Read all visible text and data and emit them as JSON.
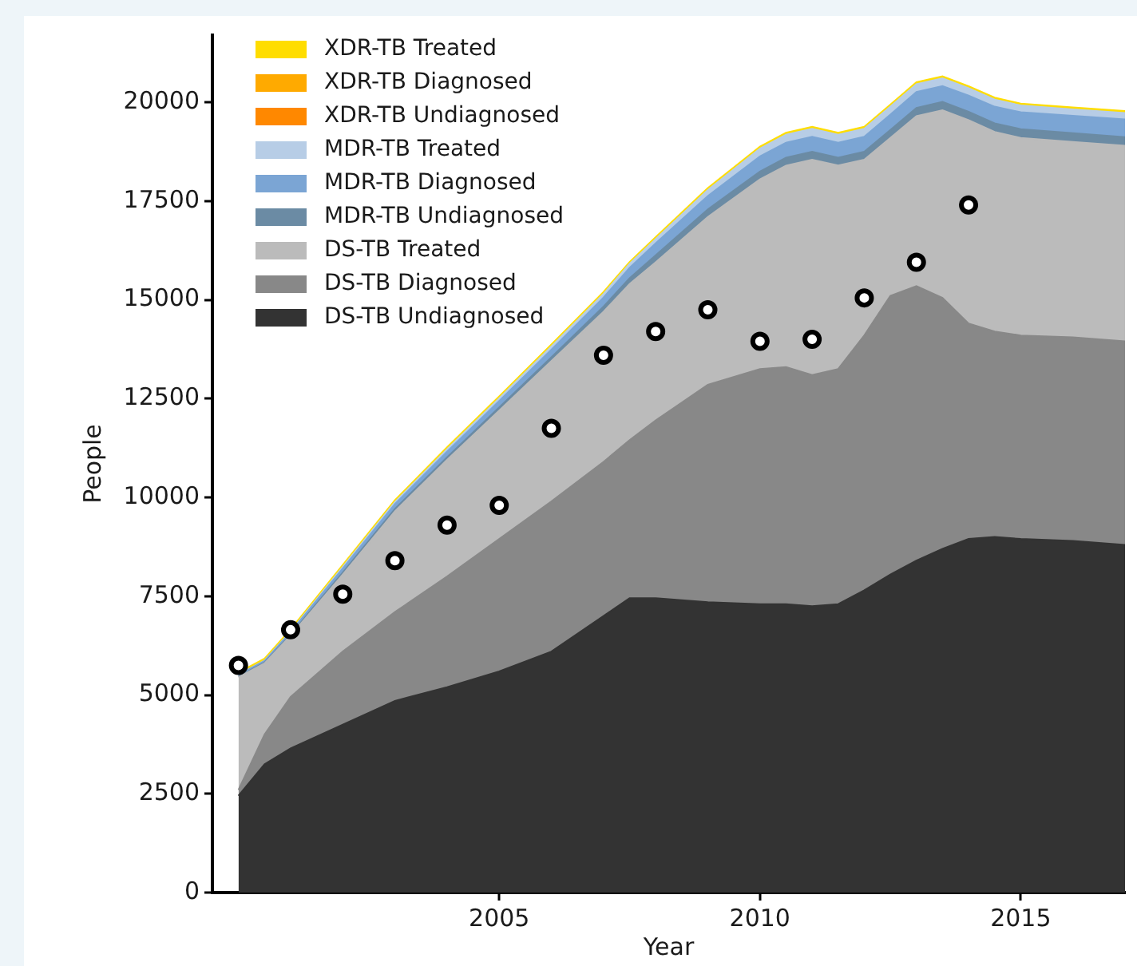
{
  "chart_data": {
    "type": "area",
    "stacked": true,
    "xlabel": "Year",
    "ylabel": "People",
    "legend": "top left",
    "grid": false,
    "xlim": [
      1999.5,
      2017
    ],
    "xticks": [
      2005,
      2010,
      2015
    ],
    "ylim": [
      0,
      21700
    ],
    "yticks": [
      0,
      2500,
      5000,
      7500,
      10000,
      12500,
      15000,
      17500,
      20000
    ],
    "x": [
      2000,
      2000.5,
      2001,
      2002,
      2003,
      2004,
      2005,
      2006,
      2007,
      2007.5,
      2008,
      2009,
      2010,
      2010.5,
      2011,
      2011.5,
      2012,
      2012.5,
      2013,
      2013.5,
      2014,
      2014.5,
      2015,
      2016,
      2017
    ],
    "series": [
      {
        "name": "DS-TB Undiagnosed",
        "color": "#333333",
        "values": [
          2450,
          3250,
          3650,
          4250,
          4850,
          5200,
          5600,
          6100,
          7000,
          7450,
          7450,
          7350,
          7300,
          7300,
          7250,
          7300,
          7650,
          8050,
          8400,
          8700,
          8950,
          9000,
          8950,
          8900,
          8800
        ]
      },
      {
        "name": "DS-TB Diagnosed",
        "color": "#888888",
        "values": [
          150,
          750,
          1300,
          1850,
          2250,
          2800,
          3350,
          3800,
          3900,
          4000,
          4500,
          5500,
          5950,
          6000,
          5850,
          5950,
          6450,
          7050,
          6950,
          6350,
          5450,
          5200,
          5150,
          5150,
          5150
        ]
      },
      {
        "name": "DS-TB Treated",
        "color": "#bbbbbb",
        "values": [
          2850,
          1800,
          1550,
          1950,
          2550,
          2950,
          3250,
          3550,
          3800,
          3950,
          4000,
          4250,
          4800,
          5100,
          5450,
          5150,
          4450,
          4000,
          4300,
          4750,
          5150,
          5050,
          5000,
          4950,
          4950
        ]
      },
      {
        "name": "MDR-TB Undiagnosed",
        "color": "#6b8ba4",
        "values": [
          20,
          20,
          30,
          50,
          60,
          70,
          80,
          100,
          130,
          150,
          180,
          190,
          200,
          200,
          200,
          200,
          200,
          200,
          210,
          210,
          210,
          220,
          220,
          220,
          220
        ]
      },
      {
        "name": "MDR-TB Diagnosed",
        "color": "#7ba5d4",
        "values": [
          40,
          40,
          60,
          100,
          120,
          140,
          160,
          190,
          230,
          260,
          300,
          340,
          380,
          380,
          380,
          380,
          380,
          390,
          400,
          400,
          410,
          420,
          430,
          440,
          450
        ]
      },
      {
        "name": "MDR-TB Treated",
        "color": "#b7cde6",
        "values": [
          10,
          10,
          20,
          40,
          50,
          60,
          70,
          80,
          90,
          100,
          110,
          150,
          200,
          200,
          200,
          200,
          200,
          200,
          200,
          200,
          190,
          180,
          170,
          160,
          160
        ]
      },
      {
        "name": "XDR-TB Undiagnosed",
        "color": "#ff8800",
        "values": [
          null,
          null,
          null,
          null,
          null,
          null,
          null,
          null,
          null,
          null,
          null,
          null,
          null,
          null,
          null,
          null,
          null,
          null,
          null,
          null,
          null,
          null,
          null,
          null,
          null
        ]
      },
      {
        "name": "XDR-TB Diagnosed",
        "color": "#ffaa00",
        "values": [
          null,
          null,
          null,
          null,
          null,
          null,
          null,
          null,
          null,
          null,
          null,
          null,
          null,
          null,
          null,
          null,
          null,
          null,
          null,
          null,
          null,
          null,
          null,
          null,
          null
        ]
      },
      {
        "name": "XDR-TB Treated",
        "color": "#ffdd00",
        "values": [
          50,
          50,
          50,
          50,
          50,
          50,
          50,
          50,
          50,
          50,
          50,
          50,
          50,
          50,
          50,
          50,
          50,
          50,
          50,
          50,
          50,
          50,
          50,
          50,
          50
        ]
      },
      {
        "type": "scatter",
        "marker": "circle",
        "color": "#000000",
        "x": [
          2000,
          2001,
          2002,
          2003,
          2004,
          2005,
          2006,
          2007,
          2008,
          2009,
          2010,
          2011,
          2012,
          2013,
          2014
        ],
        "values": [
          5750,
          6650,
          7550,
          8400,
          9300,
          9800,
          11750,
          13600,
          14200,
          14750,
          13950,
          14000,
          15050,
          15950,
          17400
        ]
      }
    ]
  }
}
